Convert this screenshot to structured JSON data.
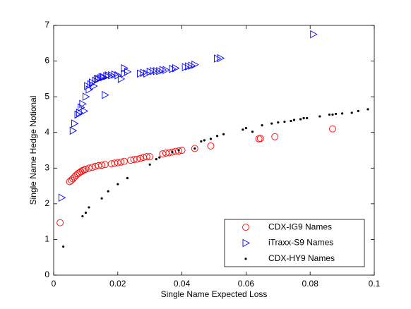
{
  "chart_data": {
    "type": "scatter",
    "xlabel": "Single Name Expected Loss",
    "ylabel": "Single Name Hedge Notional",
    "xlim": [
      0,
      0.1
    ],
    "xticks": [
      0,
      0.02,
      0.04,
      0.06,
      0.08,
      0.1
    ],
    "ylim": [
      0,
      7
    ],
    "yticks": [
      0,
      1,
      2,
      3,
      4,
      5,
      6,
      7
    ],
    "legend": "lower right",
    "series": [
      {
        "name": "CDX-IG9 Names",
        "color": "#ff0000",
        "marker": "circle",
        "x": [
          0.002,
          0.005,
          0.0055,
          0.006,
          0.0065,
          0.007,
          0.0075,
          0.008,
          0.0085,
          0.009,
          0.0095,
          0.01,
          0.011,
          0.012,
          0.013,
          0.014,
          0.015,
          0.016,
          0.018,
          0.019,
          0.02,
          0.021,
          0.022,
          0.024,
          0.025,
          0.026,
          0.027,
          0.028,
          0.029,
          0.03,
          0.034,
          0.035,
          0.036,
          0.037,
          0.038,
          0.039,
          0.04,
          0.044,
          0.049,
          0.064,
          0.0645,
          0.069,
          0.087
        ],
        "values": [
          1.47,
          2.62,
          2.66,
          2.7,
          2.75,
          2.8,
          2.84,
          2.87,
          2.9,
          2.93,
          2.95,
          2.97,
          3.0,
          3.02,
          3.05,
          3.07,
          3.08,
          3.1,
          3.12,
          3.14,
          3.15,
          3.17,
          3.19,
          3.22,
          3.24,
          3.25,
          3.27,
          3.3,
          3.32,
          3.32,
          3.4,
          3.42,
          3.43,
          3.45,
          3.47,
          3.48,
          3.5,
          3.55,
          3.62,
          3.82,
          3.83,
          3.88,
          4.1
        ]
      },
      {
        "name": "iTraxx-S9 Names",
        "color": "#0000ff",
        "marker": "triangle-right",
        "x": [
          0.0025,
          0.006,
          0.0065,
          0.0075,
          0.008,
          0.0085,
          0.009,
          0.0095,
          0.01,
          0.0105,
          0.011,
          0.0115,
          0.012,
          0.0125,
          0.013,
          0.0135,
          0.014,
          0.0145,
          0.015,
          0.0155,
          0.016,
          0.0165,
          0.017,
          0.018,
          0.019,
          0.02,
          0.021,
          0.022,
          0.022,
          0.023,
          0.027,
          0.028,
          0.029,
          0.03,
          0.031,
          0.032,
          0.033,
          0.034,
          0.035,
          0.037,
          0.038,
          0.041,
          0.042,
          0.043,
          0.044,
          0.051,
          0.052,
          0.081
        ],
        "values": [
          2.17,
          4.05,
          4.25,
          4.5,
          4.55,
          4.7,
          4.8,
          4.6,
          5.0,
          5.3,
          5.2,
          5.35,
          5.4,
          5.3,
          5.45,
          5.5,
          5.5,
          5.52,
          5.55,
          5.55,
          5.05,
          5.58,
          5.6,
          5.6,
          5.62,
          5.6,
          5.5,
          5.8,
          5.65,
          5.7,
          5.65,
          5.67,
          5.65,
          5.7,
          5.72,
          5.72,
          5.72,
          5.75,
          5.75,
          5.78,
          5.8,
          5.83,
          5.85,
          5.87,
          5.9,
          6.07,
          6.08,
          6.75
        ]
      },
      {
        "name": "CDX-HY9 Names",
        "color": "#000000",
        "marker": "dot",
        "x": [
          0.003,
          0.009,
          0.01,
          0.011,
          0.015,
          0.017,
          0.02,
          0.023,
          0.03,
          0.032,
          0.033,
          0.037,
          0.039,
          0.044,
          0.046,
          0.047,
          0.049,
          0.051,
          0.053,
          0.059,
          0.06,
          0.062,
          0.065,
          0.068,
          0.07,
          0.072,
          0.074,
          0.075,
          0.077,
          0.078,
          0.079,
          0.083,
          0.086,
          0.087,
          0.088,
          0.09,
          0.093,
          0.095,
          0.098
        ],
        "values": [
          0.8,
          1.65,
          1.75,
          1.9,
          2.15,
          2.35,
          2.55,
          2.72,
          3.1,
          3.25,
          3.3,
          3.45,
          3.5,
          3.55,
          3.75,
          3.78,
          3.82,
          3.9,
          3.95,
          4.08,
          4.12,
          4.02,
          4.2,
          4.25,
          4.28,
          4.3,
          4.32,
          4.35,
          4.37,
          4.4,
          4.4,
          4.45,
          4.5,
          4.5,
          4.52,
          4.53,
          4.55,
          4.6,
          4.65
        ]
      }
    ]
  }
}
